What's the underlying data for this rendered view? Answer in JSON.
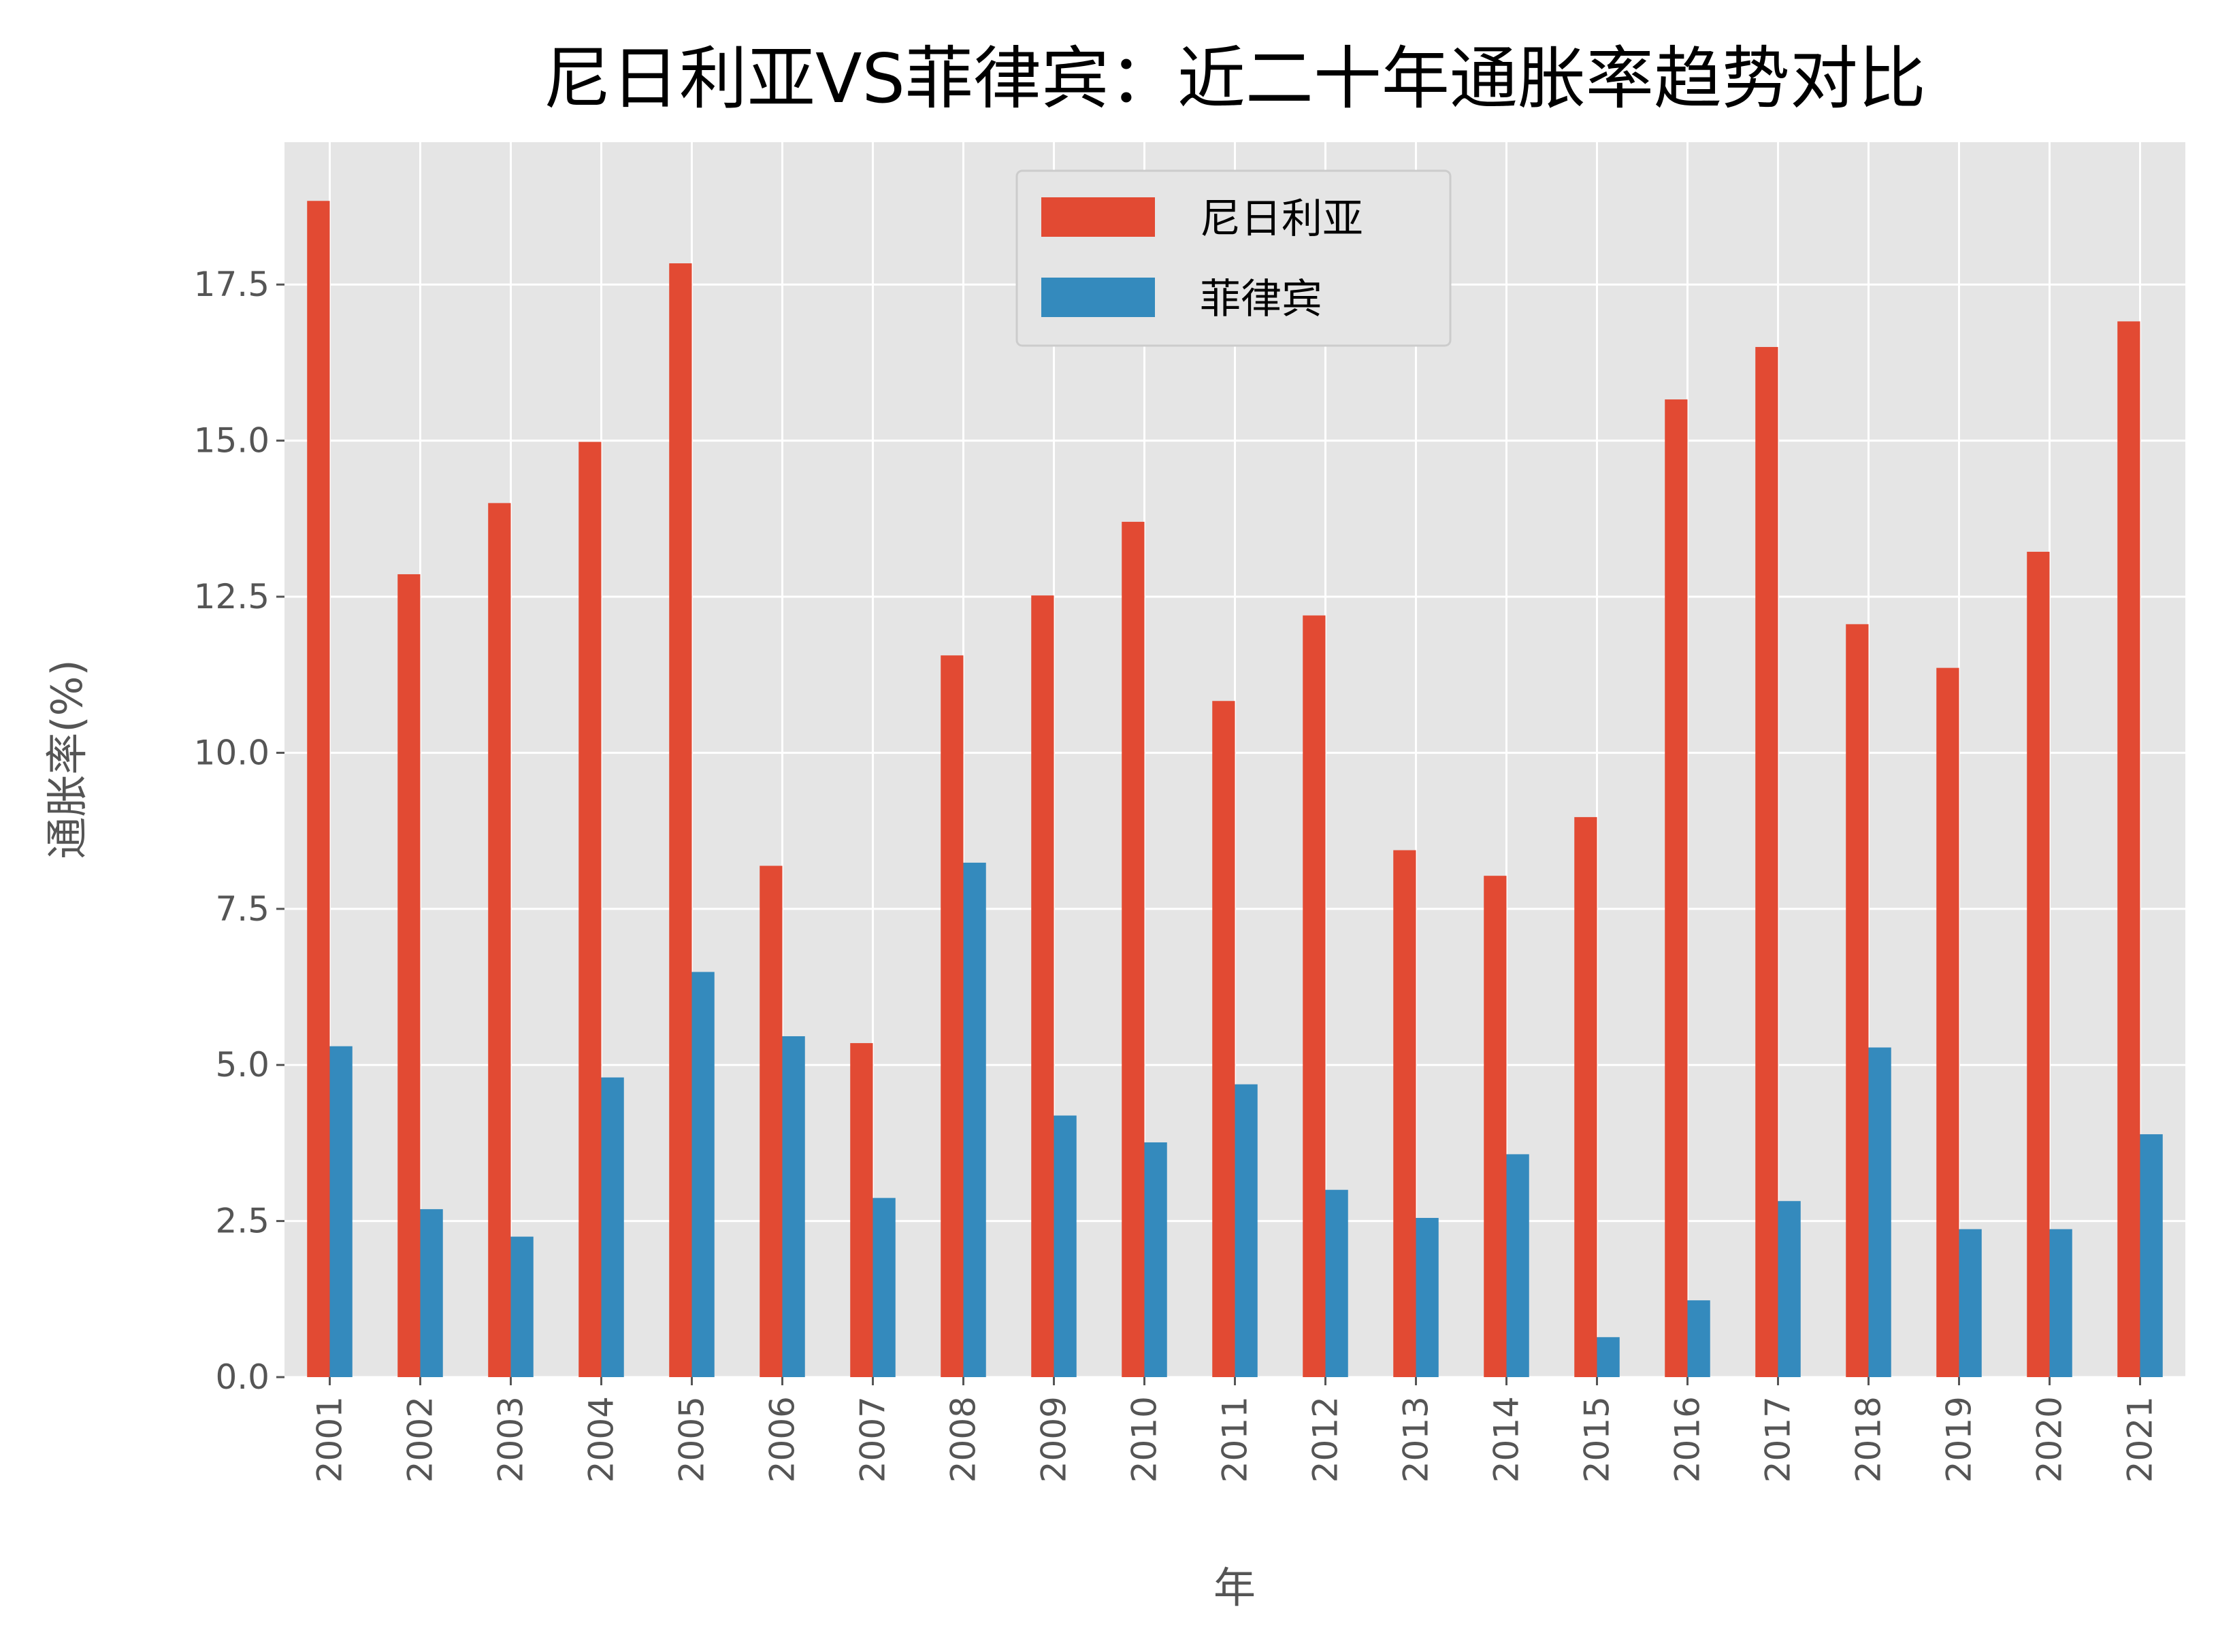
{
  "chart_data": {
    "type": "bar",
    "title": "尼日利亚VS菲律宾：近二十年通胀率趋势对比",
    "xlabel": "年",
    "ylabel": "通胀率(%)",
    "ylim": [
      0,
      19.78
    ],
    "yticks": [
      "0.0",
      "2.5",
      "5.0",
      "7.5",
      "10.0",
      "12.5",
      "15.0",
      "17.5"
    ],
    "grid": true,
    "legend_position": "top-center",
    "categories": [
      "2001",
      "2002",
      "2003",
      "2004",
      "2005",
      "2006",
      "2007",
      "2008",
      "2009",
      "2010",
      "2011",
      "2012",
      "2013",
      "2014",
      "2015",
      "2016",
      "2017",
      "2018",
      "2019",
      "2020",
      "2021"
    ],
    "series": [
      {
        "name": "尼日利亚",
        "color": "#E24A33",
        "values": [
          18.84,
          12.86,
          14.0,
          14.98,
          17.84,
          8.19,
          5.35,
          11.56,
          12.52,
          13.7,
          10.83,
          12.2,
          8.44,
          8.03,
          8.97,
          15.66,
          16.5,
          12.06,
          11.36,
          13.22,
          16.91
        ]
      },
      {
        "name": "菲律宾",
        "color": "#348ABD",
        "values": [
          5.3,
          2.69,
          2.25,
          4.8,
          6.49,
          5.46,
          2.87,
          8.24,
          4.19,
          3.76,
          4.69,
          3.0,
          2.55,
          3.57,
          0.64,
          1.23,
          2.82,
          5.28,
          2.37,
          2.37,
          3.89
        ]
      }
    ]
  }
}
